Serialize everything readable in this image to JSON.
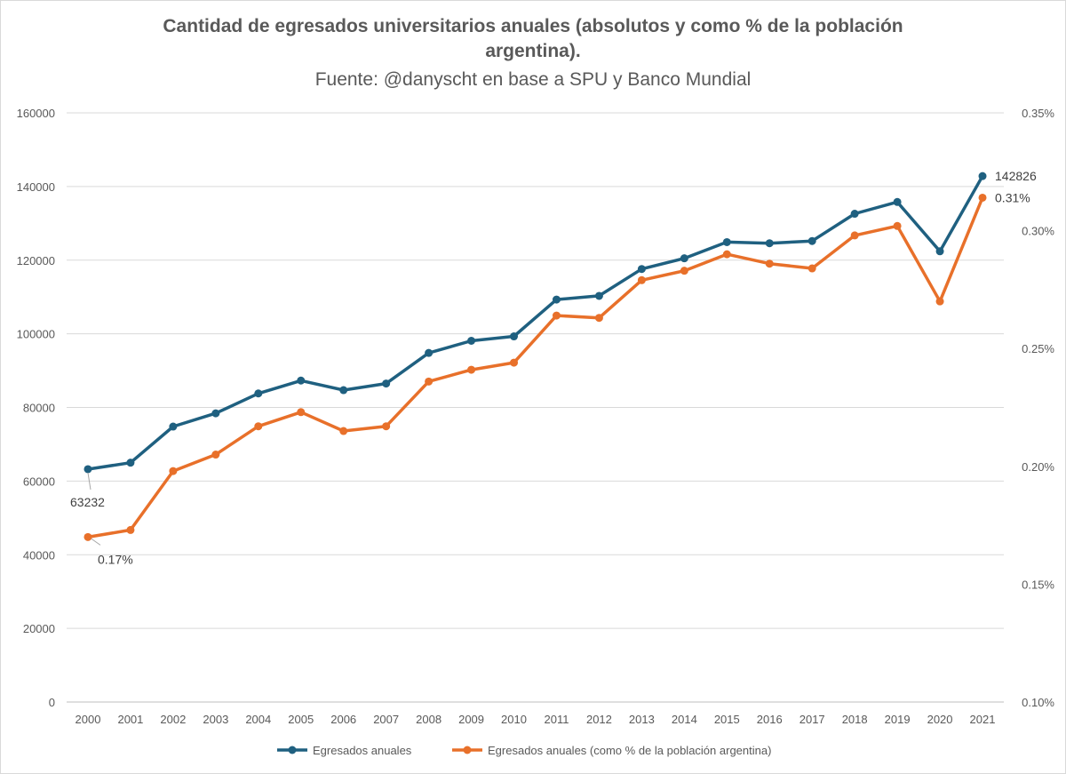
{
  "chart_data": {
    "type": "line",
    "title_line1": "Cantidad  de egresados universitarios anuales (absolutos y como % de la población",
    "title_line2": "argentina).",
    "subtitle": "Fuente: @danyscht en base a SPU y Banco Mundial",
    "categories": [
      "2000",
      "2001",
      "2002",
      "2003",
      "2004",
      "2005",
      "2006",
      "2007",
      "2008",
      "2009",
      "2010",
      "2011",
      "2012",
      "2013",
      "2014",
      "2015",
      "2016",
      "2017",
      "2018",
      "2019",
      "2020",
      "2021"
    ],
    "y_left": {
      "min": 0,
      "max": 160000,
      "ticks": [
        "0",
        "20000",
        "40000",
        "60000",
        "80000",
        "100000",
        "120000",
        "140000",
        "160000"
      ]
    },
    "y_right": {
      "min": 0.1,
      "max": 0.35,
      "ticks": [
        "0.10%",
        "0.15%",
        "0.20%",
        "0.25%",
        "0.30%",
        "0.35%"
      ]
    },
    "grid": true,
    "legend_position": "bottom",
    "series": [
      {
        "name": "Egresados anuales",
        "axis": "left",
        "color": "#1f6080",
        "values": [
          63232,
          65000,
          74800,
          78400,
          83800,
          87300,
          84700,
          86500,
          94800,
          98100,
          99300,
          109300,
          110300,
          117600,
          120500,
          124900,
          124600,
          125200,
          132600,
          135800,
          122400,
          142826
        ],
        "first_label": "63232",
        "last_label": "142826"
      },
      {
        "name": "Egresados anuales (como % de la población argentina)",
        "axis": "right",
        "color": "#e8702a",
        "values": [
          0.17,
          0.173,
          0.198,
          0.205,
          0.217,
          0.223,
          0.215,
          0.217,
          0.236,
          0.241,
          0.244,
          0.264,
          0.263,
          0.279,
          0.283,
          0.29,
          0.286,
          0.284,
          0.298,
          0.302,
          0.27,
          0.314
        ],
        "first_label": "0.17%",
        "last_label": "0.31%"
      }
    ]
  }
}
